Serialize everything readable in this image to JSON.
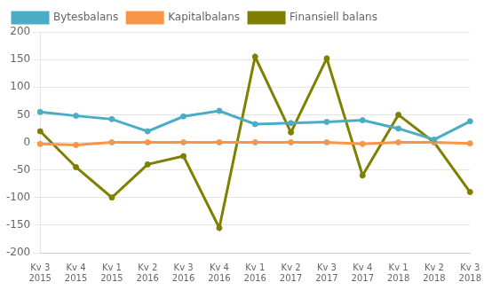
{
  "chart_data": {
    "type": "line",
    "categories": [
      "Kv 3\n2015",
      "Kv 4\n2015",
      "Kv 1\n2015",
      "Kv 2\n2016",
      "Kv 3\n2016",
      "Kv 4\n2016",
      "Kv 1\n2016",
      "Kv 2\n2017",
      "Kv 3\n2017",
      "Kv 4\n2017",
      "Kv 1\n2018",
      "Kv 2\n2018",
      "Kv 3\n2018"
    ],
    "series": [
      {
        "name": "Bytesbalans",
        "color": "#4bacc6",
        "values": [
          55,
          48,
          42,
          20,
          47,
          57,
          33,
          35,
          37,
          40,
          25,
          5,
          38
        ]
      },
      {
        "name": "Kapitalbalans",
        "color": "#f79646",
        "values": [
          -3,
          -5,
          0,
          0,
          0,
          0,
          0,
          0,
          0,
          -3,
          0,
          0,
          -2
        ]
      },
      {
        "name": "Finansiell balans",
        "color": "#7f7f00",
        "values": [
          20,
          -45,
          -100,
          -40,
          -25,
          -155,
          155,
          18,
          152,
          -60,
          50,
          0,
          -90
        ]
      }
    ],
    "ylim": [
      -200,
      200
    ],
    "yticks": [
      -200,
      -150,
      -100,
      -50,
      0,
      50,
      100,
      150,
      200
    ],
    "grid": true,
    "legend": "upper left"
  }
}
